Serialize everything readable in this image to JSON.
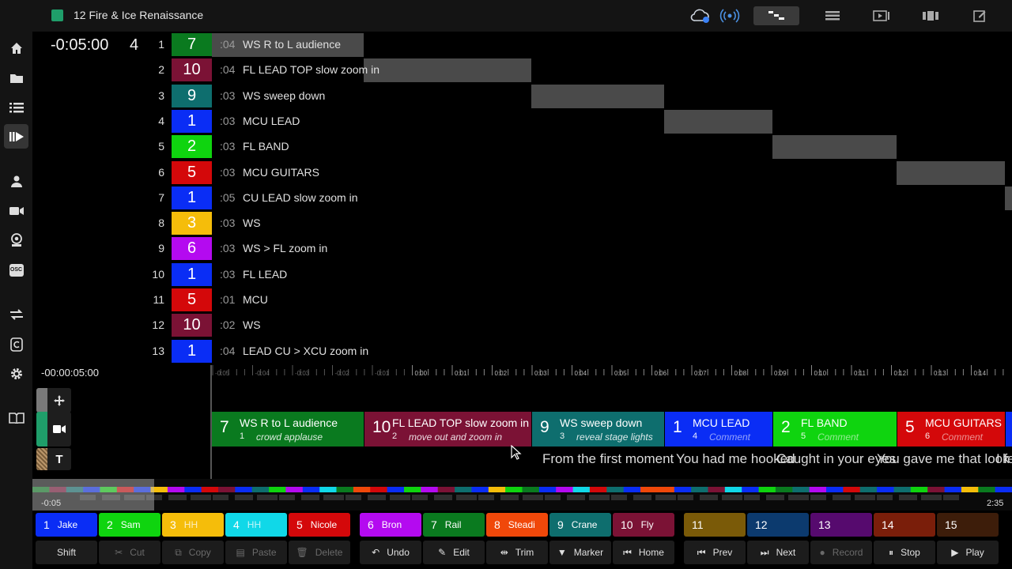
{
  "title": "12  Fire & Ice  Renaissance",
  "header": {
    "timecode": "-0:05:00",
    "count": "4"
  },
  "shots": [
    {
      "num": "1",
      "cam": "7",
      "color": "#0a7a1f",
      "dur": ":04",
      "desc": "WS R to L audience"
    },
    {
      "num": "2",
      "cam": "10",
      "color": "#7b1235",
      "dur": ":04",
      "desc": "FL LEAD TOP slow zoom in"
    },
    {
      "num": "3",
      "cam": "9",
      "color": "#0e6e6e",
      "dur": ":03",
      "desc": "WS sweep down"
    },
    {
      "num": "4",
      "cam": "1",
      "color": "#0a2df5",
      "dur": ":03",
      "desc": "MCU LEAD"
    },
    {
      "num": "5",
      "cam": "2",
      "color": "#0fd40f",
      "dur": ":03",
      "desc": "FL BAND"
    },
    {
      "num": "6",
      "cam": "5",
      "color": "#d4080a",
      "dur": ":03",
      "desc": "MCU GUITARS"
    },
    {
      "num": "7",
      "cam": "1",
      "color": "#0a2df5",
      "dur": ":05",
      "desc": "CU LEAD slow zoom in"
    },
    {
      "num": "8",
      "cam": "3",
      "color": "#f5bd0a",
      "dur": ":03",
      "desc": "WS"
    },
    {
      "num": "9",
      "cam": "6",
      "color": "#b40af0",
      "dur": ":03",
      "desc": "WS > FL zoom in"
    },
    {
      "num": "10",
      "cam": "1",
      "color": "#0a2df5",
      "dur": ":03",
      "desc": "FL LEAD"
    },
    {
      "num": "11",
      "cam": "5",
      "color": "#d4080a",
      "dur": ":01",
      "desc": "MCU"
    },
    {
      "num": "12",
      "cam": "10",
      "color": "#7b1235",
      "dur": ":02",
      "desc": "WS"
    },
    {
      "num": "13",
      "cam": "1",
      "color": "#0a2df5",
      "dur": ":04",
      "desc": "LEAD CU > XCU zoom in"
    }
  ],
  "timeline": {
    "time": "-00:00:05:00",
    "ruler_labels": [
      "-0:05",
      "-0:04",
      "-0:03",
      "-0:02",
      "-0:01",
      "0:00",
      "0:01",
      "0:02",
      "0:03",
      "0:04",
      "0:05",
      "0:06",
      "0:07",
      "0:08",
      "0:09",
      "0:10",
      "0:11",
      "0:12",
      "0:13",
      "0:14"
    ],
    "clips": [
      {
        "cam": "7",
        "title": "WS R to L audience",
        "idx": "1",
        "comment": "crowd applause",
        "color": "#0a7a1f",
        "placeholder": false
      },
      {
        "cam": "10",
        "title": "FL LEAD TOP slow zoom in",
        "idx": "2",
        "comment": "move out and zoom in",
        "color": "#7b1235",
        "placeholder": false
      },
      {
        "cam": "9",
        "title": "WS sweep down",
        "idx": "3",
        "comment": "reveal stage lights",
        "color": "#0e6e6e",
        "placeholder": false
      },
      {
        "cam": "1",
        "title": "MCU LEAD",
        "idx": "4",
        "comment": "Comment",
        "color": "#0a2df5",
        "placeholder": true
      },
      {
        "cam": "2",
        "title": "FL BAND",
        "idx": "5",
        "comment": "Comment",
        "color": "#0fd40f",
        "placeholder": true
      },
      {
        "cam": "5",
        "title": "MCU GUITARS",
        "idx": "6",
        "comment": "Comment",
        "color": "#d4080a",
        "placeholder": true
      }
    ],
    "lyrics": [
      "From the first moment",
      "You had me hooked",
      "Caught in your eyes",
      "You gave me that look",
      "I fel"
    ]
  },
  "overview": {
    "start": "-0:05",
    "end": "2:35"
  },
  "camera_buttons": [
    {
      "num": "1",
      "name": "Jake",
      "color": "#0a2df5",
      "text": "#ffffff"
    },
    {
      "num": "2",
      "name": "Sam",
      "color": "#0fd40f",
      "text": "#ffffff"
    },
    {
      "num": "3",
      "name": "HH",
      "color": "#f5bd0a",
      "text": "#ffffff"
    },
    {
      "num": "4",
      "name": "HH",
      "color": "#10d8e8",
      "text": "#ffffff"
    },
    {
      "num": "5",
      "name": "Nicole",
      "color": "#d4080a",
      "text": "#ffffff"
    },
    {
      "num": "6",
      "name": "Bron",
      "color": "#b40af0",
      "text": "#ffffff"
    },
    {
      "num": "7",
      "name": "Rail",
      "color": "#0a7a1f",
      "text": "#ffffff"
    },
    {
      "num": "8",
      "name": "Steadi",
      "color": "#f0480a",
      "text": "#ffffff"
    },
    {
      "num": "9",
      "name": "Crane",
      "color": "#0e6e6e",
      "text": "#ffffff"
    },
    {
      "num": "10",
      "name": "Fly",
      "color": "#7b1235",
      "text": "#ffffff"
    },
    {
      "num": "11",
      "name": "",
      "color": "#7a5a08",
      "text": "#ffffff"
    },
    {
      "num": "12",
      "name": "",
      "color": "#0c3a6e",
      "text": "#ffffff"
    },
    {
      "num": "13",
      "name": "",
      "color": "#560a6e",
      "text": "#ffffff"
    },
    {
      "num": "14",
      "name": "",
      "color": "#7a1e0a",
      "text": "#ffffff"
    },
    {
      "num": "15",
      "name": "",
      "color": "#3d1d0a",
      "text": "#ffffff"
    }
  ],
  "command_buttons": [
    {
      "label": "Shift",
      "icon": "",
      "dim": false
    },
    {
      "label": "Cut",
      "icon": "✂",
      "dim": true
    },
    {
      "label": "Copy",
      "icon": "⧉",
      "dim": true
    },
    {
      "label": "Paste",
      "icon": "▤",
      "dim": true
    },
    {
      "label": "Delete",
      "icon": "🗑",
      "dim": true
    },
    {
      "label": "Undo",
      "icon": "↶",
      "dim": false
    },
    {
      "label": "Edit",
      "icon": "✎",
      "dim": false
    },
    {
      "label": "Trim",
      "icon": "⇹",
      "dim": false
    },
    {
      "label": "Marker",
      "icon": "▼",
      "dim": false
    },
    {
      "label": "Home",
      "icon": "⏮",
      "dim": false
    },
    {
      "label": "Prev",
      "icon": "⏮",
      "dim": false
    },
    {
      "label": "Next",
      "icon": "⏭",
      "dim": false
    },
    {
      "label": "Record",
      "icon": "●",
      "dim": true
    },
    {
      "label": "Stop",
      "icon": "⏸",
      "dim": false
    },
    {
      "label": "Play",
      "icon": "▶",
      "dim": false
    }
  ]
}
